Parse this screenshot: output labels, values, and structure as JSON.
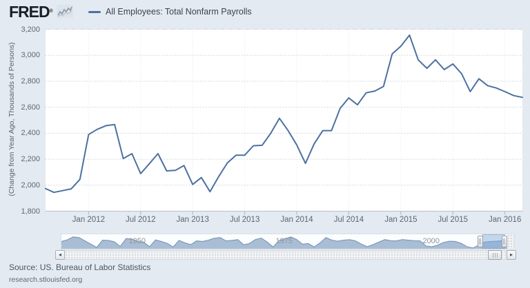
{
  "header": {
    "logo_text": "FRED",
    "logo_registered": "®",
    "legend_label": "All Employees: Total Nonfarm Payrolls"
  },
  "chart_data": {
    "type": "line",
    "title": "All Employees: Total Nonfarm Payrolls",
    "xlabel": "",
    "ylabel": "(Change from Year Ago, Thousands of Persons)",
    "frequency": "monthly",
    "x_start": "2011-08",
    "x_end": "2016-03",
    "ylim": [
      1800,
      3200
    ],
    "y_ticks": [
      3200,
      3000,
      2800,
      2600,
      2400,
      2200,
      2000,
      1800
    ],
    "x_tick_labels": [
      "Jan 2012",
      "Jul 2012",
      "Jan 2013",
      "Jul 2013",
      "Jan 2014",
      "Jul 2014",
      "Jan 2015",
      "Jul 2015",
      "Jan 2016"
    ],
    "x_tick_indices": [
      5,
      11,
      17,
      23,
      29,
      35,
      41,
      47,
      53
    ],
    "values": [
      1975,
      1945,
      1958,
      1972,
      2045,
      2390,
      2430,
      2458,
      2467,
      2205,
      2243,
      2089,
      2165,
      2243,
      2110,
      2114,
      2151,
      2006,
      2059,
      1950,
      2066,
      2172,
      2231,
      2231,
      2304,
      2307,
      2400,
      2515,
      2420,
      2310,
      2168,
      2318,
      2420,
      2420,
      2592,
      2672,
      2619,
      2711,
      2725,
      2760,
      3010,
      3070,
      3155,
      2965,
      2900,
      2965,
      2890,
      2933,
      2858,
      2720,
      2819,
      2766,
      2748,
      2720,
      2690,
      2676
    ],
    "line_color": "#4c70a0",
    "grid": true,
    "legend_position": "top"
  },
  "overview": {
    "type": "area",
    "start_year": 1939,
    "end_year": 2016,
    "values_pct": [
      50,
      62,
      85,
      80,
      55,
      30,
      5,
      60,
      58,
      48,
      12,
      72,
      68,
      50,
      44,
      10,
      62,
      50,
      35,
      8,
      58,
      40,
      26,
      55,
      50,
      60,
      74,
      80,
      55,
      58,
      64,
      25,
      35,
      65,
      76,
      45,
      8,
      56,
      70,
      85,
      65,
      30,
      34,
      8,
      40,
      80,
      60,
      52,
      60,
      64,
      55,
      30,
      10,
      26,
      46,
      64,
      56,
      55,
      65,
      60,
      56,
      55,
      15,
      10,
      22,
      42,
      52,
      50,
      36,
      10,
      0,
      22,
      46,
      50,
      52,
      56,
      66,
      55
    ],
    "decade_labels": [
      {
        "label": "1950",
        "year": 1950
      },
      {
        "label": "1975",
        "year": 1975
      },
      {
        "label": "2000",
        "year": 2000
      }
    ],
    "fill_color": "#a9bed5",
    "line_color": "#7e99b8"
  },
  "scrollbar": {
    "left_arrow": "◂",
    "right_arrow": "▸"
  },
  "footer": {
    "source": "Source: US. Bureau of Labor Statistics",
    "site": "research.stlouisfed.org"
  }
}
